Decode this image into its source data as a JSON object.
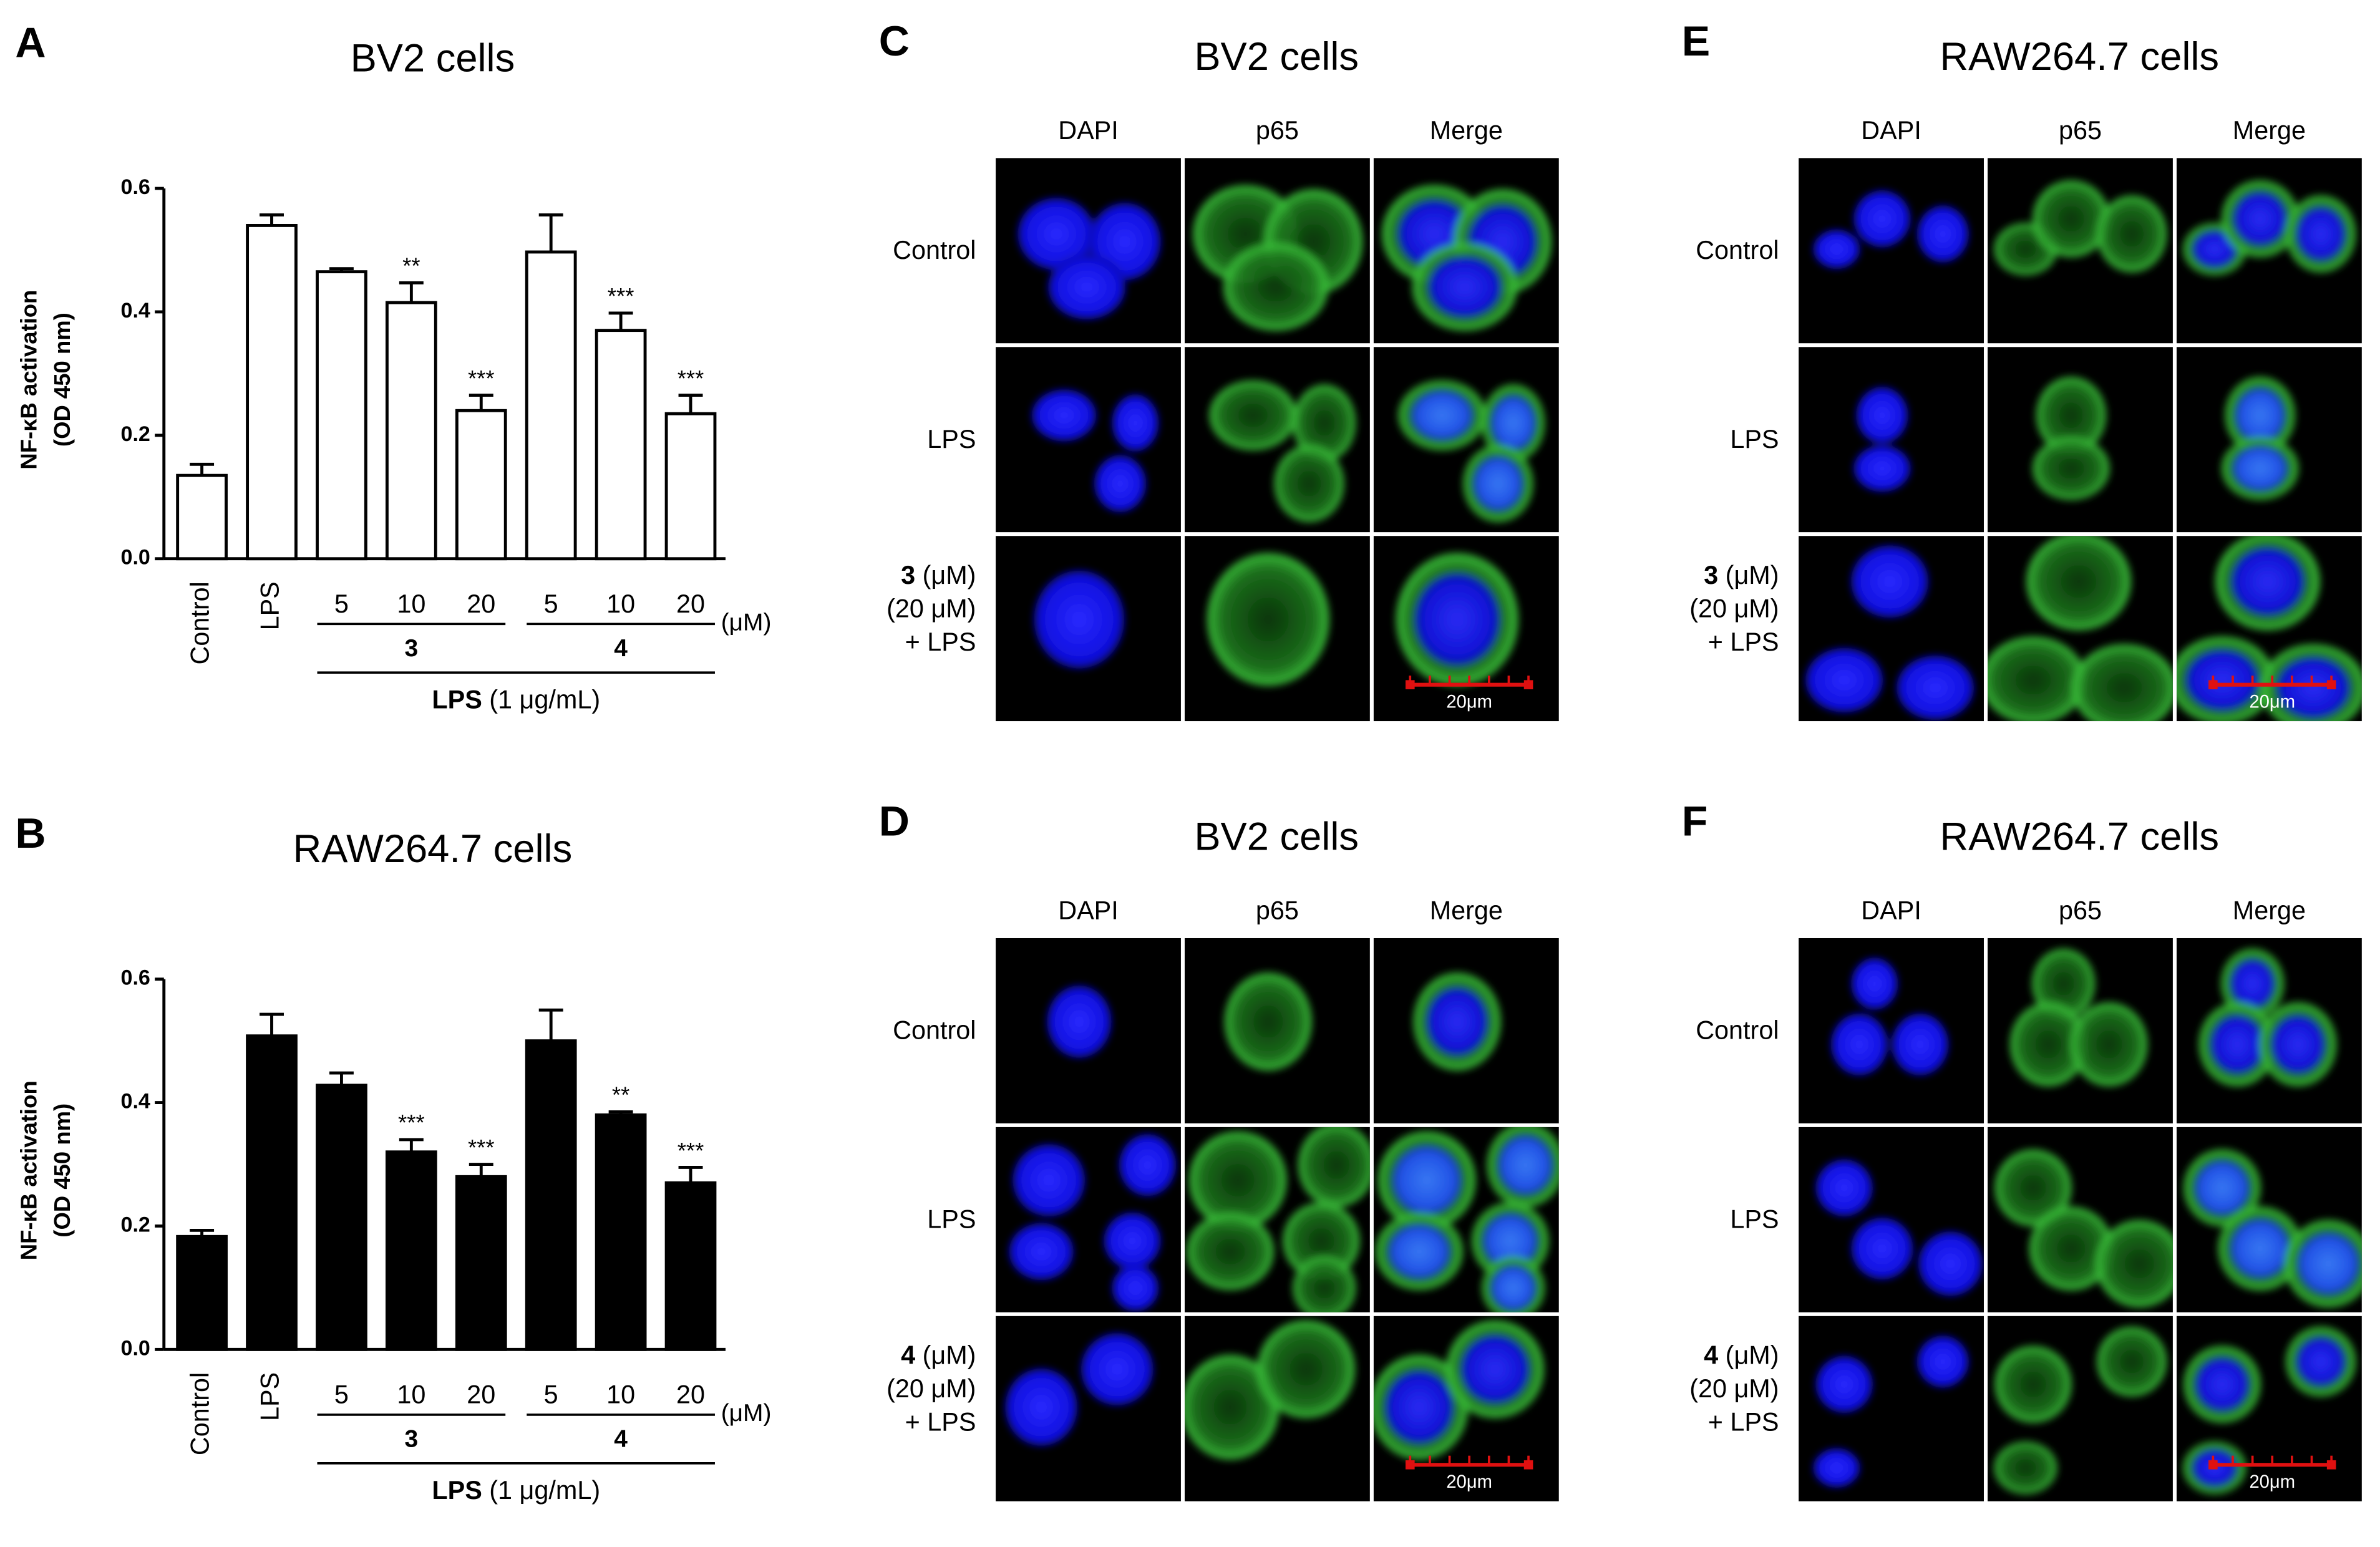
{
  "chart_data": [
    {
      "type": "bar",
      "letter": "A",
      "title": "BV2 cells",
      "ylabel": [
        "NF-κB activation",
        "(OD 450 nm)"
      ],
      "categories": [
        "Control",
        "LPS",
        "5",
        "10",
        "20",
        "5",
        "10",
        "20"
      ],
      "values": [
        0.135,
        0.54,
        0.465,
        0.415,
        0.24,
        0.497,
        0.37,
        0.235
      ],
      "errors": [
        0.018,
        0.017,
        0.005,
        0.032,
        0.025,
        0.06,
        0.028,
        0.03
      ],
      "annotations": [
        null,
        null,
        null,
        "**",
        "***",
        null,
        "***",
        "***"
      ],
      "groups": [
        "3",
        "4"
      ],
      "group_unit": "(μM)",
      "xlabel_bold": "LPS",
      "xlabel": "(1 μg/mL)",
      "color": "#ffffff",
      "edgecolor": "#000000",
      "ylim": [
        0,
        0.6
      ],
      "yticks": [
        {
          "value": 0,
          "label": "0.0"
        },
        0.2,
        0.4,
        0.6
      ]
    },
    {
      "type": "bar",
      "letter": "B",
      "title": "RAW264.7 cells",
      "ylabel": [
        "NF-κB activation",
        "(OD 450 nm)"
      ],
      "categories": [
        "Control",
        "LPS",
        "5",
        "10",
        "20",
        "5",
        "10",
        "20"
      ],
      "values": [
        0.183,
        0.508,
        0.428,
        0.32,
        0.28,
        0.5,
        0.38,
        0.27
      ],
      "errors": [
        0.01,
        0.035,
        0.02,
        0.02,
        0.02,
        0.05,
        0.005,
        0.025
      ],
      "annotations": [
        null,
        null,
        null,
        "***",
        "***",
        null,
        "**",
        "***"
      ],
      "groups": [
        "3",
        "4"
      ],
      "group_unit": "(μM)",
      "xlabel_bold": "LPS",
      "xlabel": "(1 μg/mL)",
      "color": "#000000",
      "edgecolor": "#000000",
      "ylim": [
        0,
        0.6
      ],
      "yticks": [
        {
          "value": 0,
          "label": "0.0"
        },
        0.2,
        0.4,
        0.6
      ]
    }
  ],
  "panels": [
    {
      "letter": "C",
      "title": "BV2 cells",
      "columns": [
        "DAPI",
        "p65",
        "Merge"
      ],
      "rows": [
        "Control",
        "LPS"
      ],
      "treated": {
        "compound": "3",
        "unit": "(μM)",
        "dose": "(20 μM)",
        "treatment": "+ LPS"
      },
      "scale_bar": "20μm"
    },
    {
      "letter": "D",
      "title": "BV2 cells",
      "columns": [
        "DAPI",
        "p65",
        "Merge"
      ],
      "rows": [
        "Control",
        "LPS"
      ],
      "treated": {
        "compound": "4",
        "unit": "(μM)",
        "dose": "(20 μM)",
        "treatment": "+ LPS"
      },
      "scale_bar": "20μm"
    },
    {
      "letter": "E",
      "title": "RAW264.7 cells",
      "columns": [
        "DAPI",
        "p65",
        "Merge"
      ],
      "rows": [
        "Control",
        "LPS"
      ],
      "treated": {
        "compound": "3",
        "unit": "(μM)",
        "dose": "(20 μM)",
        "treatment": "+ LPS"
      },
      "scale_bar": "20μm"
    },
    {
      "letter": "F",
      "title": "RAW264.7 cells",
      "columns": [
        "DAPI",
        "p65",
        "Merge"
      ],
      "rows": [
        "Control",
        "LPS"
      ],
      "treated": {
        "compound": "4",
        "unit": "(μM)",
        "dose": "(20 μM)",
        "treatment": "+ LPS"
      },
      "scale_bar": "20μm"
    }
  ]
}
